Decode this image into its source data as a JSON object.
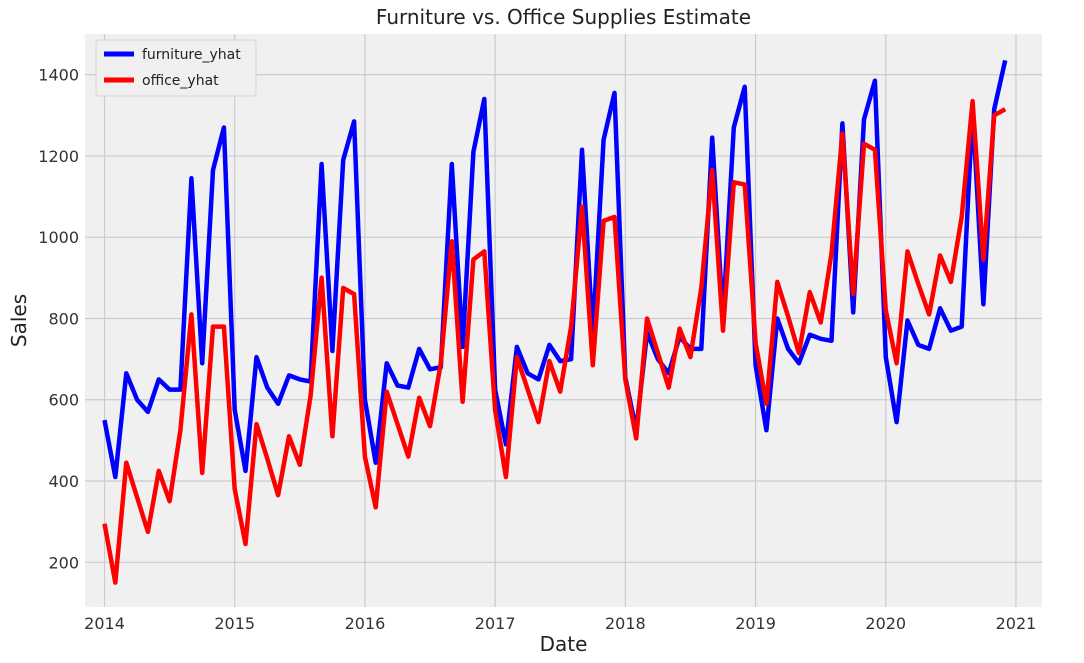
{
  "chart_data": {
    "type": "line",
    "title": "Furniture vs. Office Supplies Estimate",
    "xlabel": "Date",
    "ylabel": "Sales",
    "xlim": [
      2013.85,
      2021.2
    ],
    "ylim": [
      90,
      1500
    ],
    "x_ticks": [
      2014,
      2015,
      2016,
      2017,
      2018,
      2019,
      2020,
      2021
    ],
    "x_tick_labels": [
      "2014",
      "2015",
      "2016",
      "2017",
      "2018",
      "2019",
      "2020",
      "2021"
    ],
    "y_ticks": [
      200,
      400,
      600,
      800,
      1000,
      1200,
      1400
    ],
    "y_tick_labels": [
      "200",
      "400",
      "600",
      "800",
      "1000",
      "1200",
      "1400"
    ],
    "grid": true,
    "legend_position": "top-left",
    "series": [
      {
        "name": "furniture_yhat",
        "color": "#0000ff",
        "x": [
          2014.0,
          2014.083,
          2014.167,
          2014.25,
          2014.333,
          2014.417,
          2014.5,
          2014.583,
          2014.667,
          2014.75,
          2014.833,
          2014.917,
          2015.0,
          2015.083,
          2015.167,
          2015.25,
          2015.333,
          2015.417,
          2015.5,
          2015.583,
          2015.667,
          2015.75,
          2015.833,
          2015.917,
          2016.0,
          2016.083,
          2016.167,
          2016.25,
          2016.333,
          2016.417,
          2016.5,
          2016.583,
          2016.667,
          2016.75,
          2016.833,
          2016.917,
          2017.0,
          2017.083,
          2017.167,
          2017.25,
          2017.333,
          2017.417,
          2017.5,
          2017.583,
          2017.667,
          2017.75,
          2017.833,
          2017.917,
          2018.0,
          2018.083,
          2018.167,
          2018.25,
          2018.333,
          2018.417,
          2018.5,
          2018.583,
          2018.667,
          2018.75,
          2018.833,
          2018.917,
          2019.0,
          2019.083,
          2019.167,
          2019.25,
          2019.333,
          2019.417,
          2019.5,
          2019.583,
          2019.667,
          2019.75,
          2019.833,
          2019.917,
          2020.0,
          2020.083,
          2020.167,
          2020.25,
          2020.333,
          2020.417,
          2020.5,
          2020.583,
          2020.667,
          2020.75,
          2020.833,
          2020.917
        ],
        "values": [
          550,
          410,
          665,
          600,
          570,
          650,
          625,
          625,
          1145,
          690,
          1165,
          1270,
          575,
          425,
          705,
          630,
          590,
          660,
          650,
          645,
          1180,
          720,
          1190,
          1285,
          600,
          445,
          690,
          635,
          630,
          725,
          675,
          680,
          1180,
          730,
          1210,
          1340,
          625,
          490,
          730,
          665,
          650,
          735,
          695,
          700,
          1215,
          760,
          1240,
          1355,
          655,
          525,
          765,
          700,
          665,
          755,
          725,
          725,
          1245,
          800,
          1270,
          1370,
          685,
          525,
          800,
          725,
          690,
          760,
          750,
          745,
          1280,
          815,
          1290,
          1385,
          705,
          545,
          795,
          735,
          725,
          825,
          770,
          780,
          1315,
          835,
          1315,
          1435
        ]
      },
      {
        "name": "office_yhat",
        "color": "#ff0000",
        "x": [
          2014.0,
          2014.083,
          2014.167,
          2014.25,
          2014.333,
          2014.417,
          2014.5,
          2014.583,
          2014.667,
          2014.75,
          2014.833,
          2014.917,
          2015.0,
          2015.083,
          2015.167,
          2015.25,
          2015.333,
          2015.417,
          2015.5,
          2015.583,
          2015.667,
          2015.75,
          2015.833,
          2015.917,
          2016.0,
          2016.083,
          2016.167,
          2016.25,
          2016.333,
          2016.417,
          2016.5,
          2016.583,
          2016.667,
          2016.75,
          2016.833,
          2016.917,
          2017.0,
          2017.083,
          2017.167,
          2017.25,
          2017.333,
          2017.417,
          2017.5,
          2017.583,
          2017.667,
          2017.75,
          2017.833,
          2017.917,
          2018.0,
          2018.083,
          2018.167,
          2018.25,
          2018.333,
          2018.417,
          2018.5,
          2018.583,
          2018.667,
          2018.75,
          2018.833,
          2018.917,
          2019.0,
          2019.083,
          2019.167,
          2019.25,
          2019.333,
          2019.417,
          2019.5,
          2019.583,
          2019.667,
          2019.75,
          2019.833,
          2019.917,
          2020.0,
          2020.083,
          2020.167,
          2020.25,
          2020.333,
          2020.417,
          2020.5,
          2020.583,
          2020.667,
          2020.75,
          2020.833,
          2020.917
        ],
        "values": [
          295,
          150,
          445,
          360,
          275,
          425,
          350,
          525,
          810,
          420,
          780,
          780,
          380,
          245,
          540,
          455,
          365,
          510,
          440,
          610,
          900,
          510,
          875,
          860,
          460,
          335,
          620,
          540,
          460,
          605,
          535,
          690,
          990,
          595,
          945,
          965,
          575,
          410,
          705,
          625,
          545,
          695,
          620,
          780,
          1075,
          685,
          1040,
          1050,
          650,
          505,
          800,
          715,
          630,
          775,
          705,
          875,
          1165,
          770,
          1135,
          1130,
          740,
          590,
          890,
          805,
          715,
          865,
          790,
          960,
          1255,
          860,
          1230,
          1215,
          820,
          690,
          965,
          885,
          810,
          955,
          890,
          1050,
          1335,
          945,
          1300,
          1315
        ]
      }
    ]
  }
}
